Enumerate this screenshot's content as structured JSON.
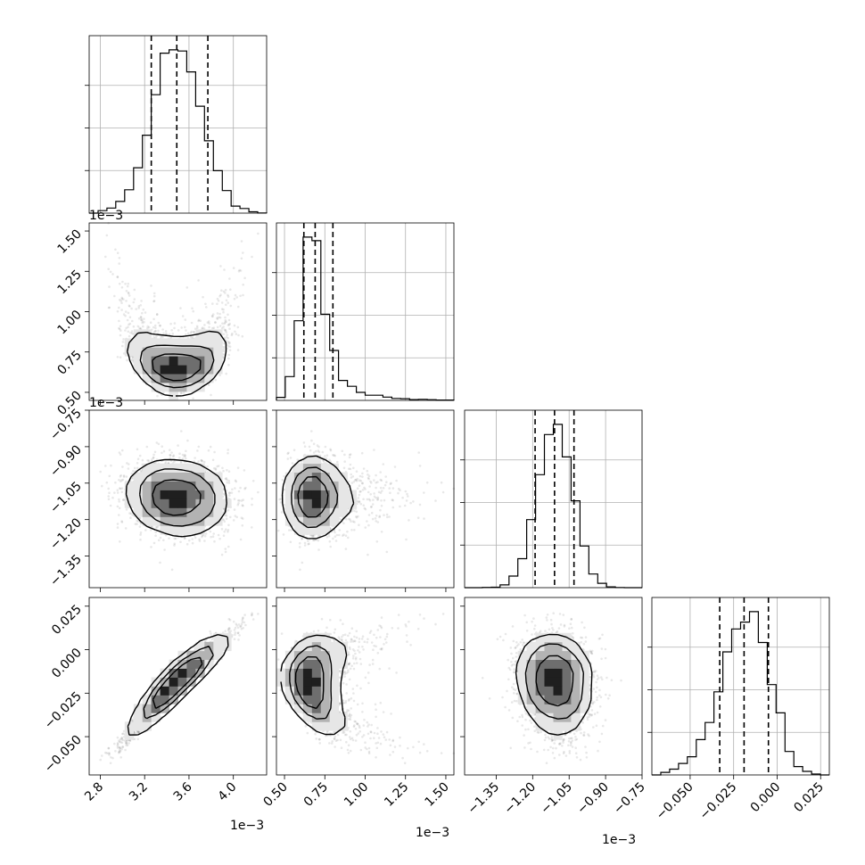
{
  "chart_data": {
    "type": "corner",
    "parameters": 4,
    "offset_text": {
      "p0": "1e−3",
      "p1": "1e−3",
      "p2": "1e−3"
    },
    "axes": [
      {
        "range": [
          2.7,
          4.3
        ],
        "ticks": [
          2.8,
          3.2,
          3.6,
          4.0
        ],
        "tick_labels": [
          "2.8",
          "3.2",
          "3.6",
          "4.0"
        ],
        "mean": 3.49,
        "sd": 0.22,
        "skew": 0,
        "quantiles": [
          3.26,
          3.49,
          3.77
        ]
      },
      {
        "range": [
          0.45,
          1.55
        ],
        "ticks": [
          0.5,
          0.75,
          1.0,
          1.25,
          1.5
        ],
        "tick_labels": [
          "0.50",
          "0.75",
          "1.00",
          "1.25",
          "1.50"
        ],
        "mean": 0.69,
        "sd": 0.065,
        "skew": 0.22,
        "quantiles": [
          0.62,
          0.69,
          0.8
        ]
      },
      {
        "range": [
          -1.48,
          -0.75
        ],
        "ticks": [
          -1.35,
          -1.2,
          -1.05,
          -0.9,
          -0.75
        ],
        "tick_labels": [
          "−1.35",
          "−1.20",
          "−1.05",
          "−0.90",
          "−0.75"
        ],
        "mean": -1.11,
        "sd": 0.07,
        "skew": 0,
        "quantiles": [
          -1.19,
          -1.11,
          -1.03
        ]
      },
      {
        "range": [
          -0.072,
          0.03
        ],
        "ticks": [
          -0.05,
          -0.025,
          0.0,
          0.025
        ],
        "tick_labels": [
          "−0.050",
          "−0.025",
          "0.000",
          "0.025"
        ],
        "mean": -0.019,
        "sd": 0.014,
        "skew": 0,
        "quantiles": [
          -0.033,
          -0.019,
          -0.005
        ]
      }
    ],
    "correlations": [
      {
        "i": 1,
        "j": 0,
        "rho": 0.0,
        "curvature": 0.55
      },
      {
        "i": 2,
        "j": 0,
        "rho": -0.1,
        "curvature": 0
      },
      {
        "i": 2,
        "j": 1,
        "rho": 0.0,
        "curvature": 0
      },
      {
        "i": 3,
        "j": 0,
        "rho": 0.96,
        "curvature": 0
      },
      {
        "i": 3,
        "j": 1,
        "rho": 0.45,
        "curvature": -0.5
      },
      {
        "i": 3,
        "j": 2,
        "rho": -0.1,
        "curvature": 0
      }
    ],
    "quantile_levels": [
      0.16,
      0.5,
      0.84
    ],
    "contour_levels": [
      0.118,
      0.393,
      0.675,
      0.865
    ],
    "grid": true
  }
}
